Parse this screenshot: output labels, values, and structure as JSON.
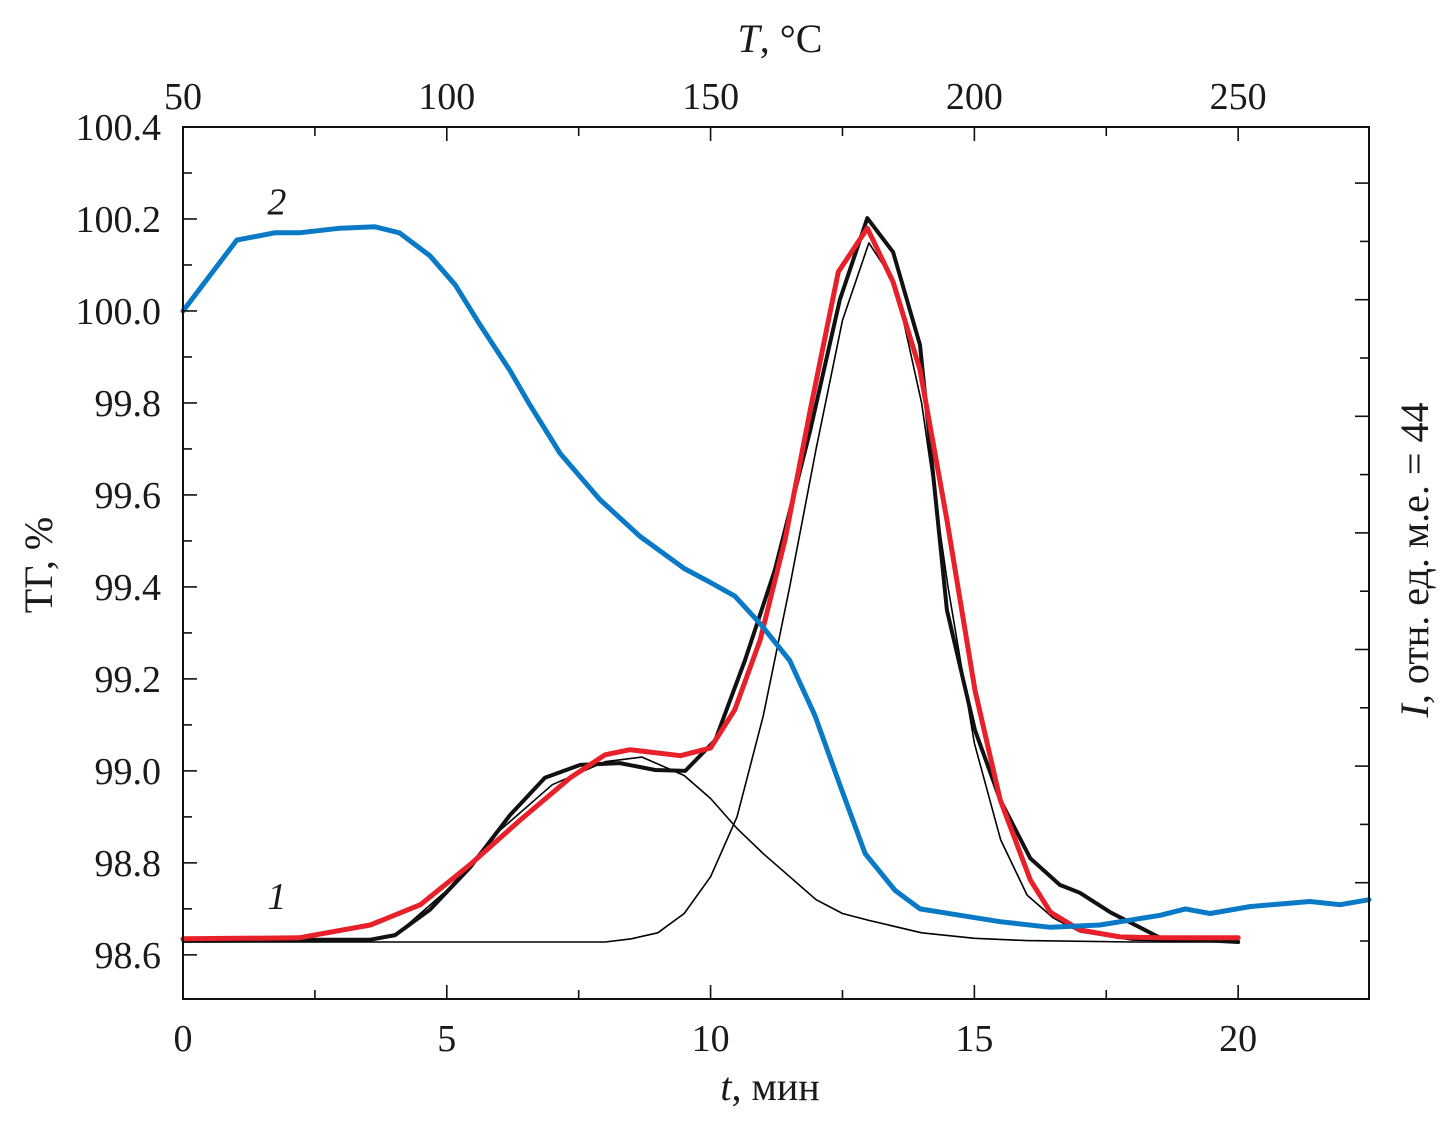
{
  "chart_data": {
    "type": "line",
    "title": "",
    "xlabel": {
      "var": "t",
      "rest": ", мин"
    },
    "x2label": {
      "var": "T",
      "rest": ", °C"
    },
    "ylabel": "ТГ, %",
    "y2label": {
      "var": "I",
      "rest": ", отн. ед. м.е. = 44"
    },
    "xlim": [
      0,
      22.48
    ],
    "x2lim": [
      50,
      274.8
    ],
    "ylim": [
      98.504,
      100.4
    ],
    "x_ticks": [
      0,
      5,
      10,
      15,
      20
    ],
    "x2_ticks": [
      50,
      100,
      150,
      200,
      250
    ],
    "y_ticks": [
      "100.4",
      "100.2",
      "100.0",
      "99.8",
      "99.6",
      "99.4",
      "99.2",
      "99.0",
      "98.8",
      "98.6"
    ],
    "grid": false,
    "annotations": [
      {
        "text": "2",
        "t": 1.6,
        "y": 100.21
      },
      {
        "text": "1",
        "t": 1.6,
        "y": 98.7
      }
    ],
    "series": [
      {
        "name": "2 (ТГ)",
        "color": "#0a7ac6",
        "width": 5,
        "x": [
          0,
          1.02,
          1.74,
          2.2,
          2.98,
          3.64,
          4.1,
          4.68,
          5.16,
          5.63,
          6.2,
          6.58,
          7.15,
          7.9,
          8.66,
          9.5,
          9.99,
          10.46,
          10.94,
          11.5,
          11.98,
          12.45,
          12.93,
          13.5,
          13.97,
          14.73,
          15.49,
          16.44,
          17.38,
          18.52,
          19.0,
          19.47,
          20.22,
          21.36,
          21.93,
          22.48
        ],
        "y": [
          100.0,
          100.154,
          100.17,
          100.17,
          100.18,
          100.183,
          100.17,
          100.12,
          100.057,
          99.97,
          99.87,
          99.795,
          99.69,
          99.59,
          99.51,
          99.44,
          99.41,
          99.38,
          99.32,
          99.24,
          99.12,
          98.97,
          98.82,
          98.74,
          98.7,
          98.686,
          98.672,
          98.66,
          98.665,
          98.686,
          98.7,
          98.69,
          98.705,
          98.716,
          98.709,
          98.72
        ]
      },
      {
        "name": "1 (I, m/z 44, experiment)",
        "color": "#111111",
        "width": 4,
        "x": [
          0,
          3.55,
          4.02,
          4.68,
          5.44,
          6.2,
          6.86,
          7.53,
          8.28,
          8.95,
          9.52,
          10.09,
          10.65,
          11.22,
          11.89,
          12.45,
          12.97,
          13.46,
          13.97,
          14.48,
          15.01,
          15.49,
          16.06,
          16.62,
          17.0,
          17.57,
          18.52,
          20
        ],
        "y": [
          98.633,
          98.633,
          98.643,
          98.698,
          98.79,
          98.904,
          98.985,
          99.013,
          99.017,
          99.002,
          99.0,
          99.067,
          99.24,
          99.437,
          99.741,
          100.024,
          100.202,
          100.128,
          99.926,
          99.35,
          99.089,
          98.937,
          98.81,
          98.752,
          98.735,
          98.693,
          98.637,
          98.628
        ]
      },
      {
        "name": "1 (fit sum)",
        "color": "#e8202a",
        "width": 5,
        "x": [
          0,
          2.2,
          3.55,
          4.5,
          5.44,
          6.39,
          7.34,
          8.0,
          8.47,
          9.43,
          10.0,
          10.46,
          10.94,
          11.41,
          11.89,
          12.42,
          12.97,
          13.46,
          13.97,
          14.48,
          15.01,
          15.49,
          16.06,
          16.44,
          17.0,
          17.76,
          18.52,
          20
        ],
        "y": [
          98.635,
          98.637,
          98.665,
          98.709,
          98.796,
          98.893,
          98.985,
          99.035,
          99.046,
          99.033,
          99.05,
          99.133,
          99.285,
          99.502,
          99.785,
          100.085,
          100.18,
          100.063,
          99.872,
          99.546,
          99.176,
          98.937,
          98.763,
          98.693,
          98.654,
          98.639,
          98.637,
          98.637
        ]
      },
      {
        "name": "component 1",
        "color": "#000000",
        "width": 1.6,
        "x": [
          0,
          3.5,
          4,
          5,
          6,
          7,
          8,
          8.7,
          9.5,
          10,
          10.5,
          11,
          11.5,
          12,
          12.5,
          13,
          14,
          15,
          16,
          18,
          20
        ],
        "y": [
          98.628,
          98.63,
          98.64,
          98.74,
          98.87,
          98.97,
          99.02,
          99.03,
          98.99,
          98.94,
          98.875,
          98.82,
          98.77,
          98.72,
          98.69,
          98.675,
          98.648,
          98.636,
          98.631,
          98.628,
          98.628
        ]
      },
      {
        "name": "component 2",
        "color": "#000000",
        "width": 1.6,
        "x": [
          0,
          8,
          8.5,
          9,
          9.5,
          10,
          10.5,
          11,
          11.5,
          12,
          12.5,
          13,
          13.5,
          14,
          14.5,
          15,
          15.5,
          16,
          16.5,
          17,
          18,
          20
        ],
        "y": [
          98.628,
          98.628,
          98.635,
          98.648,
          98.69,
          98.77,
          98.9,
          99.12,
          99.4,
          99.7,
          99.98,
          100.148,
          100.06,
          99.8,
          99.4,
          99.06,
          98.85,
          98.73,
          98.68,
          98.65,
          98.632,
          98.628
        ]
      }
    ]
  }
}
